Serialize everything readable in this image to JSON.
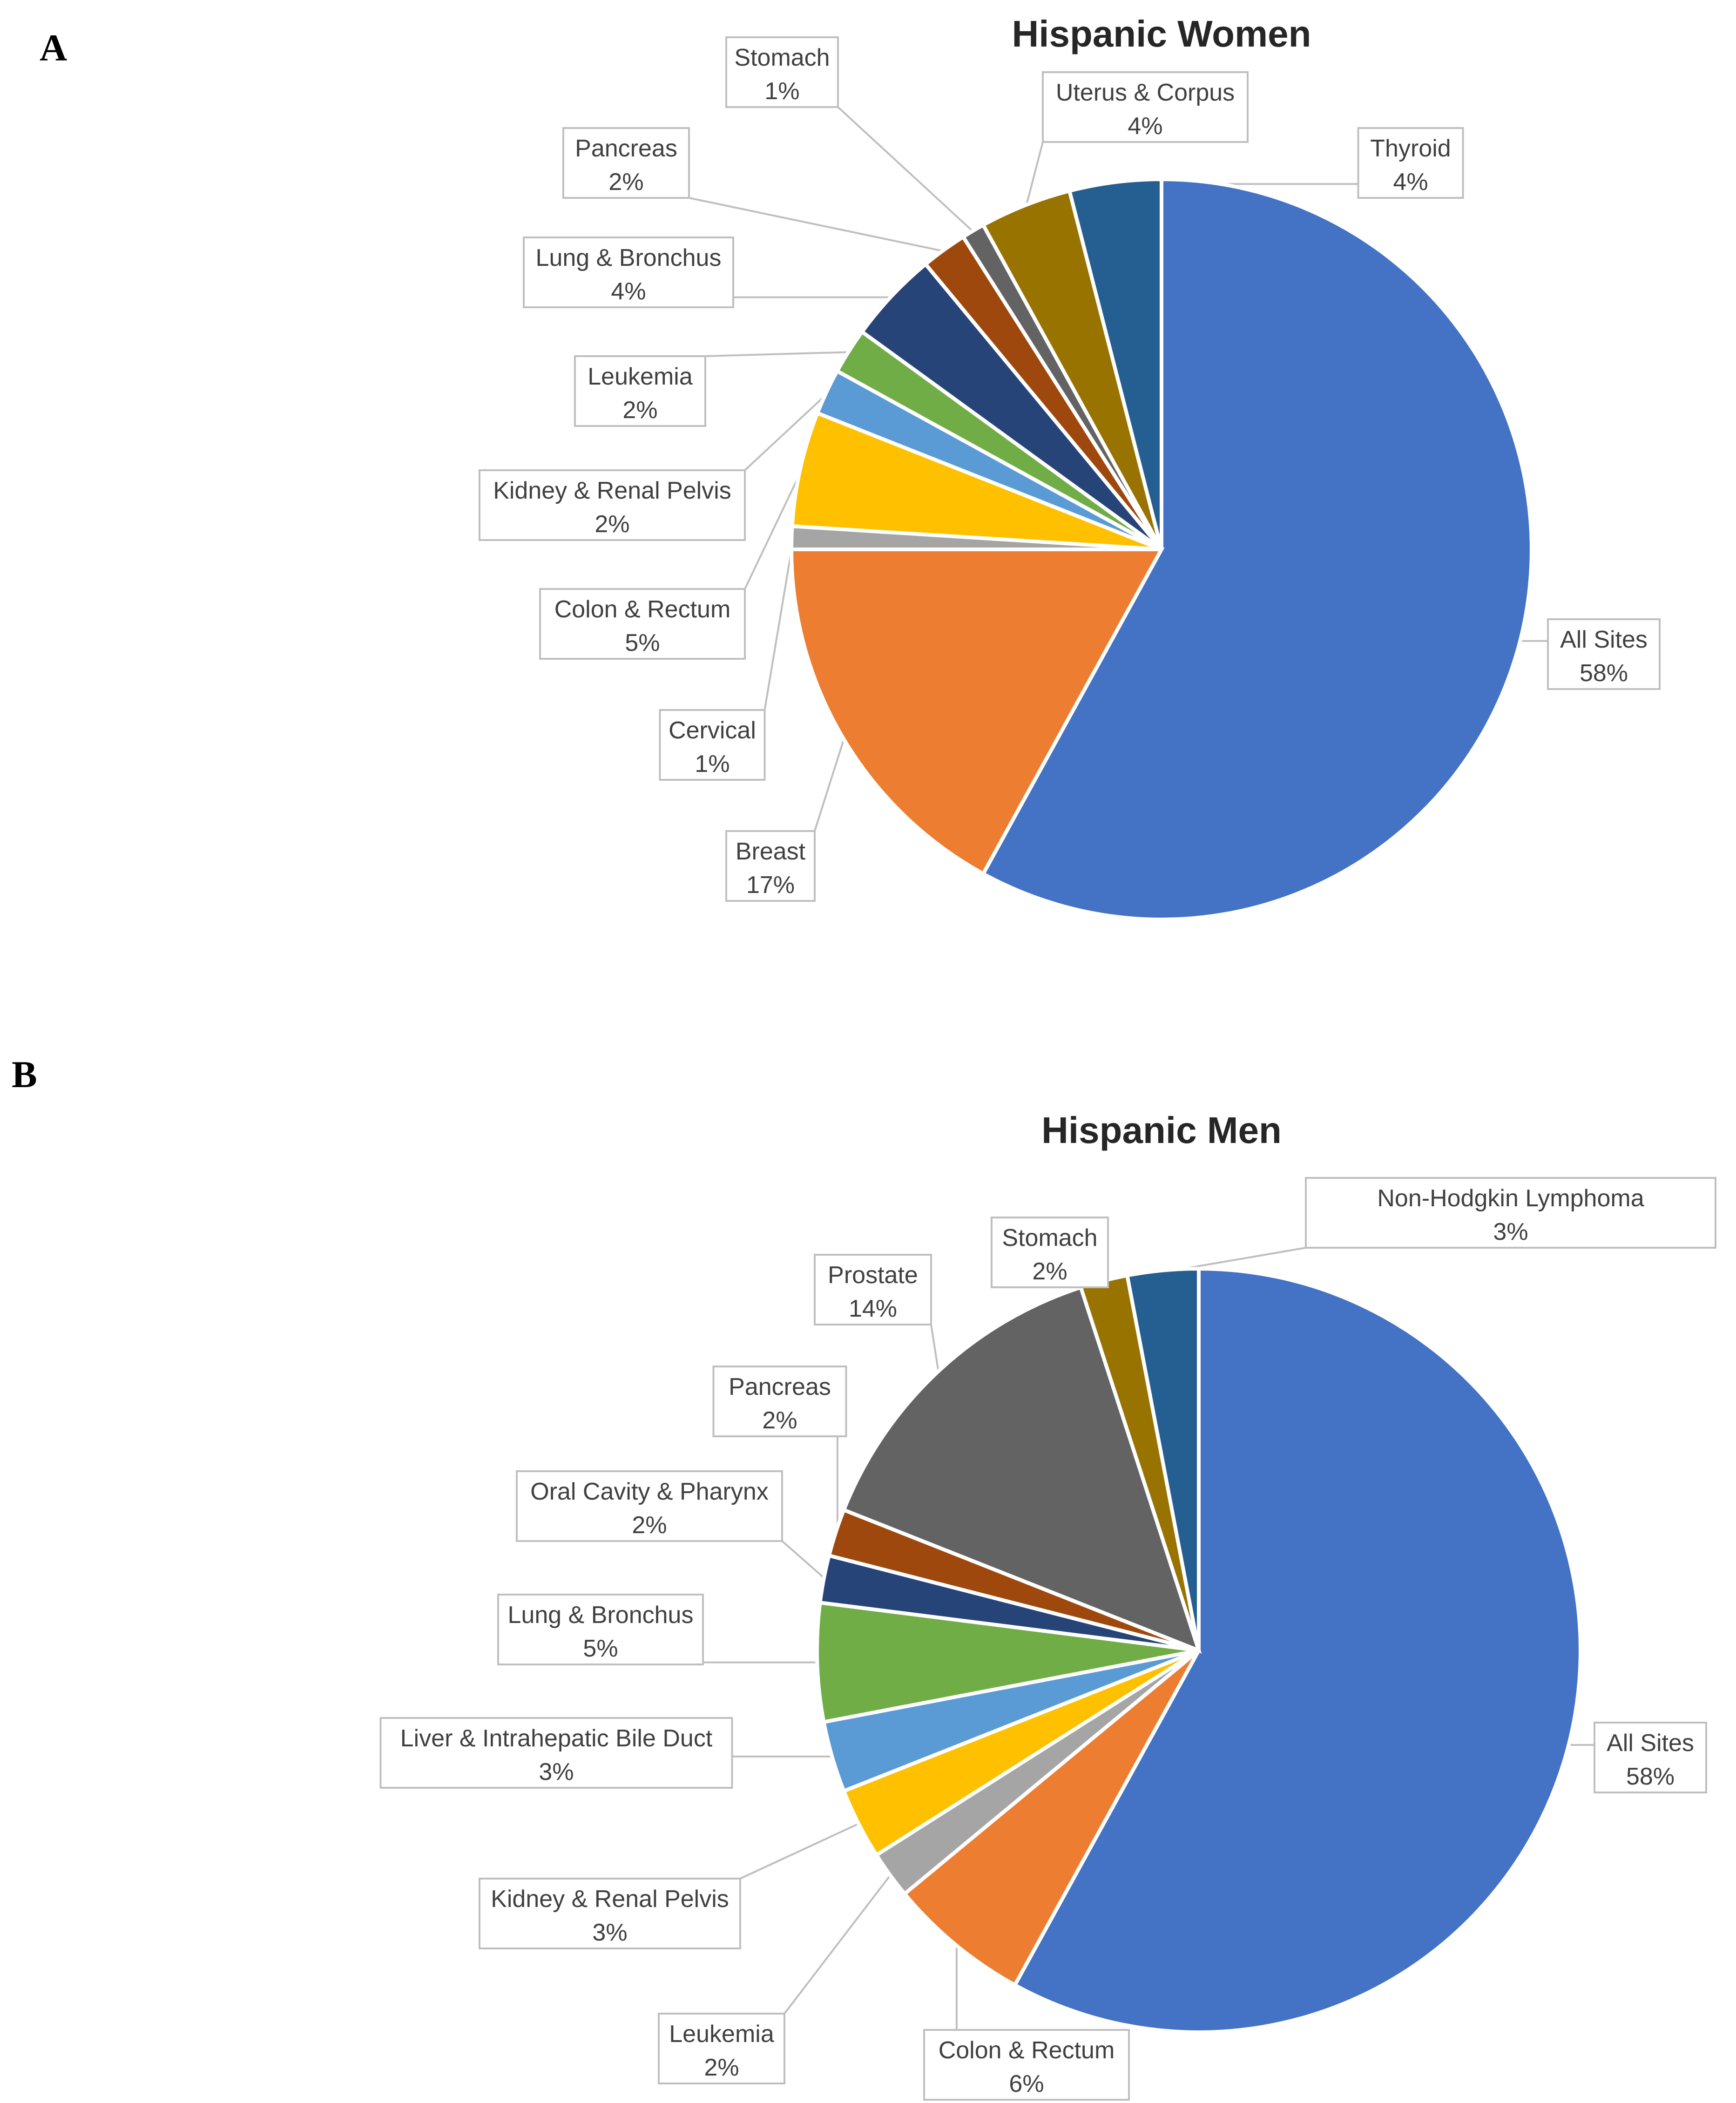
{
  "panels": [
    {
      "letter": "A"
    },
    {
      "letter": "B"
    }
  ],
  "chart_data": [
    {
      "type": "pie",
      "title": "Hispanic Women",
      "start_angle_deg": 0,
      "direction": "clockwise",
      "slices": [
        {
          "label": "All Sites",
          "value": 58,
          "pct": "58%",
          "color": "#4472C4"
        },
        {
          "label": "Breast",
          "value": 17,
          "pct": "17%",
          "color": "#ED7D31"
        },
        {
          "label": "Cervical",
          "value": 1,
          "pct": "1%",
          "color": "#A5A5A5"
        },
        {
          "label": "Colon & Rectum",
          "value": 5,
          "pct": "5%",
          "color": "#FFC000"
        },
        {
          "label": "Kidney & Renal Pelvis",
          "value": 2,
          "pct": "2%",
          "color": "#5B9BD5"
        },
        {
          "label": "Leukemia",
          "value": 2,
          "pct": "2%",
          "color": "#70AD47"
        },
        {
          "label": "Lung & Bronchus",
          "value": 4,
          "pct": "4%",
          "color": "#264478"
        },
        {
          "label": "Pancreas",
          "value": 2,
          "pct": "2%",
          "color": "#9E480E"
        },
        {
          "label": "Stomach",
          "value": 1,
          "pct": "1%",
          "color": "#636363"
        },
        {
          "label": "Uterus & Corpus",
          "value": 4,
          "pct": "4%",
          "color": "#997300"
        },
        {
          "label": "Thyroid",
          "value": 4,
          "pct": "4%",
          "color": "#255E91"
        }
      ]
    },
    {
      "type": "pie",
      "title": "Hispanic Men",
      "start_angle_deg": 0,
      "direction": "clockwise",
      "slices": [
        {
          "label": "All Sites",
          "value": 58,
          "pct": "58%",
          "color": "#4472C4"
        },
        {
          "label": "Colon & Rectum",
          "value": 6,
          "pct": "6%",
          "color": "#ED7D31"
        },
        {
          "label": "Leukemia",
          "value": 2,
          "pct": "2%",
          "color": "#A5A5A5"
        },
        {
          "label": "Kidney & Renal Pelvis",
          "value": 3,
          "pct": "3%",
          "color": "#FFC000"
        },
        {
          "label": "Liver & Intrahepatic Bile Duct",
          "value": 3,
          "pct": "3%",
          "color": "#5B9BD5"
        },
        {
          "label": "Lung & Bronchus",
          "value": 5,
          "pct": "5%",
          "color": "#70AD47"
        },
        {
          "label": "Oral Cavity & Pharynx",
          "value": 2,
          "pct": "2%",
          "color": "#264478"
        },
        {
          "label": "Pancreas",
          "value": 2,
          "pct": "2%",
          "color": "#9E480E"
        },
        {
          "label": "Prostate",
          "value": 14,
          "pct": "14%",
          "color": "#636363"
        },
        {
          "label": "Stomach",
          "value": 2,
          "pct": "2%",
          "color": "#997300"
        },
        {
          "label": "Non-Hodgkin Lymphoma",
          "value": 3,
          "pct": "3%",
          "color": "#255E91"
        }
      ]
    }
  ]
}
